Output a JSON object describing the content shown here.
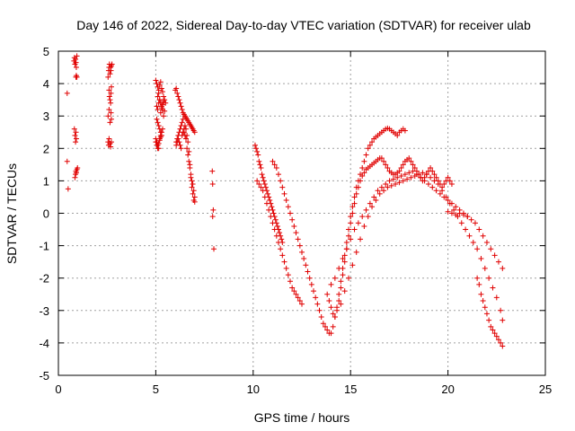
{
  "chart_data": {
    "type": "scatter",
    "title": "Day 146 of 2022, Sidereal Day-to-day VTEC variation (SDTVAR) for receiver ulab",
    "xlabel": "GPS time / hours",
    "ylabel": "SDTVAR / TECUs",
    "xlim": [
      0,
      25
    ],
    "ylim": [
      -5,
      5
    ],
    "xticks": [
      0,
      5,
      10,
      15,
      20,
      25
    ],
    "yticks": [
      -5,
      -4,
      -3,
      -2,
      -1,
      0,
      1,
      2,
      3,
      4,
      5
    ],
    "grid": true,
    "marker": "+",
    "color": "#e00000",
    "series": [
      {
        "name": "SDTVAR",
        "x": [
          0.45,
          0.45,
          0.5,
          0.8,
          0.82,
          0.85,
          0.88,
          0.9,
          0.92,
          0.95,
          0.82,
          0.85,
          0.88,
          0.9,
          0.92,
          0.9,
          0.92,
          0.95,
          0.85,
          0.88,
          0.9,
          0.92,
          0.95,
          0.98,
          2.55,
          2.58,
          2.6,
          2.62,
          2.65,
          2.68,
          2.7,
          2.72,
          2.75,
          2.6,
          2.62,
          2.65,
          2.68,
          2.7,
          2.72,
          2.55,
          2.58,
          2.6,
          2.65,
          2.68,
          2.72,
          2.55,
          2.6,
          2.65,
          2.7,
          2.72,
          5.0,
          5.05,
          5.1,
          5.15,
          5.2,
          5.25,
          5.3,
          5.35,
          5.4,
          5.45,
          5.5,
          5.05,
          5.1,
          5.15,
          5.2,
          5.25,
          5.3,
          5.35,
          5.4,
          5.45,
          5.0,
          5.05,
          5.1,
          5.15,
          5.2,
          5.25,
          5.3,
          5.35,
          5.1,
          5.15,
          5.2,
          5.25,
          5.3,
          5.35,
          5.4,
          5.05,
          5.1,
          5.15,
          5.2,
          5.25,
          5.3,
          5.0,
          5.05,
          5.1,
          5.15,
          5.2,
          5.25,
          6.0,
          6.05,
          6.1,
          6.15,
          6.2,
          6.25,
          6.3,
          6.35,
          6.4,
          6.45,
          6.5,
          6.55,
          6.6,
          6.65,
          6.7,
          6.75,
          6.8,
          6.85,
          6.9,
          6.95,
          7.0,
          6.05,
          6.1,
          6.15,
          6.2,
          6.25,
          6.3,
          6.35,
          6.4,
          6.45,
          6.5,
          6.55,
          6.6,
          6.65,
          6.7,
          6.75,
          6.8,
          6.85,
          6.9,
          6.95,
          7.0,
          6.05,
          6.1,
          6.15,
          6.2,
          6.25,
          6.3,
          6.35,
          6.4,
          6.45,
          6.5,
          6.55,
          6.6,
          6.65,
          6.7,
          6.75,
          6.8,
          6.85,
          6.9,
          6.95,
          7.0,
          7.9,
          7.92,
          7.95,
          7.98,
          7.92,
          10.1,
          10.15,
          10.2,
          10.25,
          10.3,
          10.35,
          10.4,
          10.45,
          10.5,
          10.55,
          10.6,
          10.65,
          10.7,
          10.75,
          10.8,
          10.85,
          10.9,
          10.95,
          11.0,
          11.05,
          11.1,
          11.15,
          11.2,
          11.25,
          11.3,
          11.35,
          11.4,
          11.45,
          11.5,
          10.2,
          10.3,
          10.4,
          10.5,
          10.6,
          10.7,
          10.8,
          10.9,
          11.0,
          11.1,
          11.2,
          11.3,
          11.4,
          11.5,
          11.6,
          11.7,
          11.8,
          11.9,
          12.0,
          12.1,
          12.2,
          12.3,
          12.4,
          12.5,
          11.0,
          11.1,
          11.2,
          11.3,
          11.4,
          11.5,
          11.6,
          11.7,
          11.8,
          11.9,
          12.0,
          12.1,
          12.2,
          12.3,
          12.4,
          12.5,
          12.6,
          12.7,
          12.8,
          12.9,
          13.0,
          13.1,
          13.2,
          13.3,
          13.4,
          13.5,
          13.6,
          13.7,
          13.8,
          13.9,
          14.0,
          14.1,
          14.2,
          14.3,
          14.4,
          14.5,
          14.6,
          14.7,
          14.8,
          14.9,
          15.0,
          15.1,
          15.2,
          15.3,
          15.4,
          15.5,
          15.6,
          15.7,
          15.8,
          15.9,
          16.0,
          16.1,
          16.2,
          16.3,
          16.4,
          16.5,
          16.6,
          16.7,
          16.8,
          16.9,
          17.0,
          17.1,
          17.2,
          17.3,
          17.4,
          17.5,
          17.6,
          17.7,
          17.8,
          13.8,
          13.9,
          14.0,
          14.1,
          14.2,
          14.3,
          14.4,
          14.5,
          14.6,
          14.7,
          14.8,
          14.9,
          15.0,
          15.1,
          15.2,
          15.3,
          15.4,
          15.5,
          15.6,
          15.7,
          15.8,
          15.9,
          16.0,
          16.1,
          16.2,
          16.3,
          16.4,
          16.5,
          16.6,
          16.7,
          16.8,
          16.9,
          17.0,
          17.1,
          17.2,
          17.3,
          17.4,
          17.5,
          17.6,
          17.7,
          17.8,
          17.9,
          18.0,
          18.1,
          18.2,
          18.3,
          18.4,
          18.5,
          18.6,
          18.7,
          18.8,
          18.9,
          19.0,
          19.1,
          19.2,
          19.3,
          19.4,
          19.5,
          19.6,
          19.7,
          19.8,
          19.9,
          20.0,
          20.1,
          20.2,
          14.0,
          14.2,
          14.4,
          14.6,
          14.8,
          15.0,
          15.2,
          15.4,
          15.6,
          15.8,
          16.0,
          16.2,
          16.4,
          16.6,
          16.8,
          17.0,
          17.2,
          17.4,
          17.6,
          17.8,
          18.0,
          18.2,
          18.4,
          18.6,
          18.8,
          19.0,
          19.2,
          19.4,
          19.6,
          19.8,
          20.0,
          20.2,
          20.4,
          20.6,
          20.8,
          21.0,
          14.5,
          14.7,
          14.9,
          15.1,
          15.3,
          15.5,
          15.7,
          15.9,
          16.1,
          16.3,
          16.5,
          16.7,
          16.9,
          17.1,
          17.3,
          17.5,
          17.7,
          17.9,
          18.1,
          18.3,
          18.5,
          18.7,
          18.9,
          19.1,
          19.3,
          19.5,
          19.7,
          19.9,
          20.1,
          20.3,
          20.5,
          20.7,
          20.9,
          21.1,
          21.3,
          21.5,
          21.7,
          21.9,
          22.1,
          22.3,
          22.5,
          22.7,
          22.8,
          20.0,
          20.2,
          20.4,
          20.6,
          20.8,
          21.0,
          21.2,
          21.4,
          21.6,
          21.8,
          22.0,
          22.2,
          22.4,
          22.6,
          22.8,
          21.5,
          21.6,
          21.7,
          21.8,
          21.9,
          22.0,
          22.1,
          22.2,
          22.3,
          22.4,
          22.5,
          22.6,
          22.7,
          22.8
        ],
        "y": [
          3.7,
          1.6,
          0.75,
          4.7,
          4.8,
          4.6,
          4.75,
          4.65,
          4.5,
          4.85,
          2.6,
          2.4,
          2.2,
          2.5,
          2.3,
          4.2,
          4.25,
          4.2,
          1.1,
          1.2,
          1.3,
          1.25,
          1.35,
          1.4,
          4.2,
          4.4,
          4.5,
          4.6,
          4.3,
          4.5,
          4.4,
          4.55,
          4.6,
          3.8,
          3.6,
          3.5,
          3.4,
          3.7,
          3.9,
          2.2,
          2.1,
          2.3,
          2.15,
          2.05,
          2.2,
          3.0,
          3.2,
          2.8,
          3.1,
          2.9,
          4.1,
          4.0,
          3.9,
          3.8,
          3.95,
          4.05,
          3.85,
          3.75,
          3.6,
          3.5,
          3.4,
          3.3,
          3.2,
          3.4,
          3.5,
          3.1,
          3.25,
          3.35,
          3.45,
          3.15,
          2.2,
          2.1,
          2.0,
          2.15,
          2.3,
          2.4,
          2.5,
          2.6,
          3.6,
          3.7,
          3.5,
          3.4,
          3.3,
          3.2,
          3.0,
          2.9,
          2.8,
          2.7,
          2.6,
          2.5,
          2.4,
          2.3,
          2.2,
          2.1,
          2.0,
          2.25,
          2.35,
          3.8,
          3.85,
          3.7,
          3.6,
          3.5,
          3.4,
          3.3,
          3.2,
          3.1,
          3.05,
          3.0,
          2.95,
          2.9,
          2.85,
          2.8,
          2.75,
          2.7,
          2.65,
          2.6,
          2.55,
          2.5,
          2.2,
          2.3,
          2.4,
          2.5,
          2.6,
          2.7,
          2.8,
          2.9,
          2.5,
          2.4,
          2.3,
          2.0,
          1.8,
          1.6,
          1.4,
          1.2,
          1.0,
          0.9,
          0.7,
          0.5,
          2.1,
          2.2,
          2.3,
          2.2,
          2.1,
          2.0,
          2.4,
          2.5,
          2.6,
          2.7,
          2.6,
          2.4,
          2.2,
          1.9,
          1.5,
          1.1,
          0.8,
          0.6,
          0.4,
          0.35,
          1.3,
          0.9,
          0.1,
          -1.1,
          -0.1,
          2.1,
          2.0,
          1.9,
          1.8,
          1.6,
          1.5,
          1.4,
          1.2,
          1.1,
          1.0,
          0.9,
          0.8,
          0.7,
          0.6,
          0.5,
          0.4,
          0.3,
          0.2,
          0.1,
          0.0,
          -0.1,
          -0.2,
          -0.3,
          -0.4,
          -0.5,
          -0.6,
          -0.7,
          -0.8,
          -0.9,
          1.0,
          0.9,
          0.8,
          0.7,
          0.5,
          0.3,
          0.1,
          -0.1,
          -0.3,
          -0.5,
          -0.7,
          -0.9,
          -1.1,
          -1.3,
          -1.5,
          -1.7,
          -1.9,
          -2.1,
          -2.3,
          -2.4,
          -2.5,
          -2.6,
          -2.7,
          -2.8,
          1.6,
          1.5,
          1.4,
          1.2,
          1.0,
          0.8,
          0.6,
          0.4,
          0.2,
          0.0,
          -0.2,
          -0.4,
          -0.6,
          -0.8,
          -1.0,
          -1.2,
          -1.4,
          -1.6,
          -1.8,
          -2.0,
          -2.2,
          -2.4,
          -2.6,
          -2.8,
          -3.0,
          -3.2,
          -3.4,
          -3.5,
          -3.6,
          -3.7,
          -3.7,
          -3.5,
          -3.2,
          -2.9,
          -2.5,
          -2.1,
          -1.7,
          -1.3,
          -0.9,
          -0.5,
          -0.1,
          0.2,
          0.5,
          0.8,
          1.0,
          1.2,
          1.4,
          1.6,
          1.8,
          2.0,
          2.1,
          2.2,
          2.3,
          2.35,
          2.4,
          2.45,
          2.5,
          2.55,
          2.6,
          2.62,
          2.6,
          2.55,
          2.5,
          2.45,
          2.4,
          2.5,
          2.55,
          2.6,
          2.55,
          -2.5,
          -2.7,
          -2.9,
          -3.1,
          -3.2,
          -3.0,
          -2.7,
          -2.3,
          -1.9,
          -1.5,
          -1.1,
          -0.7,
          -0.3,
          0.0,
          0.3,
          0.6,
          0.8,
          1.0,
          1.15,
          1.25,
          1.35,
          1.4,
          1.45,
          1.5,
          1.55,
          1.6,
          1.65,
          1.7,
          1.7,
          1.6,
          1.5,
          1.4,
          1.3,
          1.25,
          1.2,
          1.2,
          1.25,
          1.3,
          1.4,
          1.5,
          1.6,
          1.65,
          1.7,
          1.6,
          1.5,
          1.4,
          1.3,
          1.2,
          1.1,
          1.0,
          1.1,
          1.2,
          1.3,
          1.4,
          1.3,
          1.2,
          1.1,
          1.0,
          0.9,
          0.8,
          0.9,
          1.0,
          1.1,
          1.0,
          0.9,
          -2.2,
          -2.0,
          -1.7,
          -1.4,
          -1.1,
          -0.8,
          -0.5,
          -0.3,
          -0.1,
          0.1,
          0.3,
          0.5,
          0.7,
          0.8,
          0.9,
          1.0,
          1.05,
          1.1,
          1.15,
          1.2,
          1.25,
          1.3,
          1.2,
          1.1,
          1.0,
          0.9,
          0.8,
          0.7,
          0.6,
          0.5,
          0.4,
          0.3,
          0.2,
          0.1,
          0.0,
          -0.1,
          -2.8,
          -2.4,
          -2.0,
          -1.6,
          -1.2,
          -0.8,
          -0.4,
          -0.1,
          0.2,
          0.4,
          0.6,
          0.7,
          0.8,
          0.85,
          0.9,
          0.95,
          1.0,
          1.05,
          1.1,
          1.15,
          1.2,
          1.25,
          1.2,
          1.1,
          1.0,
          0.9,
          0.7,
          0.5,
          0.3,
          0.1,
          -0.1,
          -0.3,
          -0.5,
          -0.7,
          -0.9,
          -1.1,
          -1.4,
          -1.7,
          -2.0,
          -2.3,
          -2.6,
          -3.0,
          -3.3,
          0.05,
          0.0,
          -0.05,
          0.0,
          -0.05,
          -0.1,
          -0.2,
          -0.3,
          -0.5,
          -0.7,
          -0.9,
          -1.1,
          -1.3,
          -1.5,
          -1.7,
          -2.0,
          -2.2,
          -2.5,
          -2.7,
          -2.9,
          -3.1,
          -3.3,
          -3.5,
          -3.6,
          -3.7,
          -3.8,
          -3.9,
          -4.0,
          -4.1
        ]
      }
    ]
  }
}
